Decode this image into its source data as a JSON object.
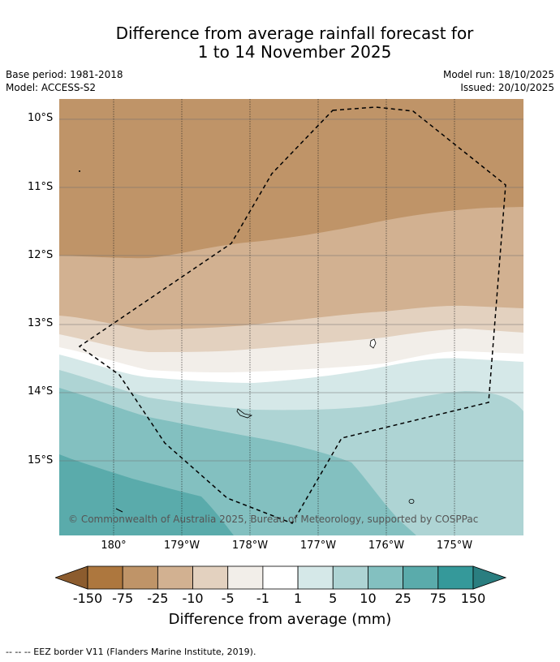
{
  "title_line1": "Difference from average rainfall forecast for",
  "title_line2": "1 to 14 November 2025",
  "meta": {
    "base_period": "Base period: 1981-2018",
    "model": "Model: ACCESS-S2",
    "model_run": "Model run: 18/10/2025",
    "issued": "Issued: 20/10/2025"
  },
  "latitudes": [
    "10°S",
    "11°S",
    "12°S",
    "13°S",
    "14°S",
    "15°S"
  ],
  "longitudes": [
    "180°",
    "179°W",
    "178°W",
    "177°W",
    "176°W",
    "175°W"
  ],
  "copyright": "© Commonwealth of Australia 2025, Bureau of Meteorology, supported by COSPPac",
  "colorbar": {
    "ticks": [
      "-150",
      "-75",
      "-25",
      "-10",
      "-5",
      "-1",
      "1",
      "5",
      "10",
      "25",
      "75",
      "150"
    ],
    "colors": [
      "#ad773e",
      "#bf9468",
      "#d2b191",
      "#e3d1bf",
      "#f2eee9",
      "#ffffff",
      "#d5e8e8",
      "#aed4d4",
      "#83c0c0",
      "#5aabab",
      "#35999a"
    ],
    "under_color": "#8c5c2e",
    "over_color": "#2a7e80",
    "label": "Difference from average (mm)"
  },
  "footer": "--  --  -- EEZ border V11 (Flanders Marine Institute, 2019)."
}
